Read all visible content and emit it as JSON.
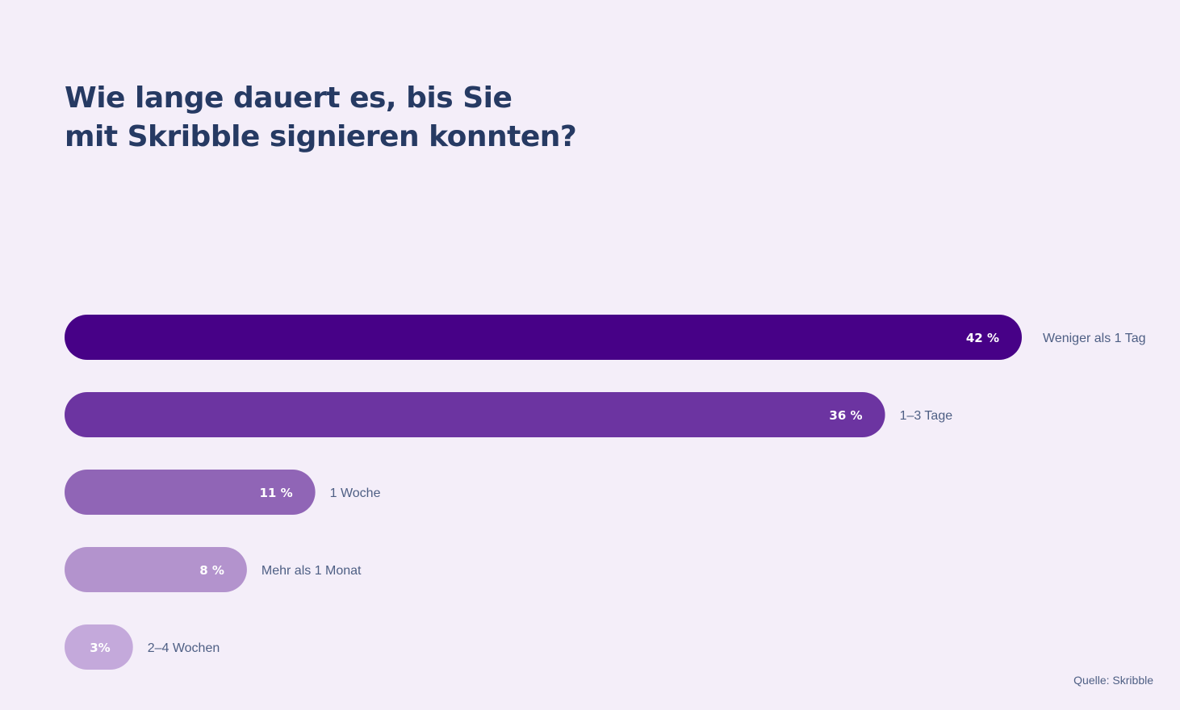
{
  "title_lines": [
    "Wie lange dauert es, bis Sie",
    "mit Skribble signieren konnten?"
  ],
  "source": "Quelle: Skribble",
  "colors": {
    "background": "#f4eef9",
    "title": "#263a63",
    "category_label": "#4e5f84",
    "value_label": "#ffffff"
  },
  "chart_data": {
    "type": "bar",
    "orientation": "horizontal",
    "title": "Wie lange dauert es, bis Sie mit Skribble signieren konnten?",
    "categories": [
      "Weniger als 1 Tag",
      "1–3 Tage",
      "1 Woche",
      "Mehr als 1 Monat",
      "2–4 Wochen"
    ],
    "values": [
      42,
      36,
      11,
      8,
      3
    ],
    "value_labels": [
      "42 %",
      "36 %",
      "11 %",
      "8 %",
      "3%"
    ],
    "unit": "%",
    "bar_colors": [
      "#470187",
      "#6c34a1",
      "#9065b6",
      "#b393cd",
      "#c4a9db"
    ],
    "xlim": [
      0,
      42
    ],
    "grid": false,
    "legend": "none"
  }
}
